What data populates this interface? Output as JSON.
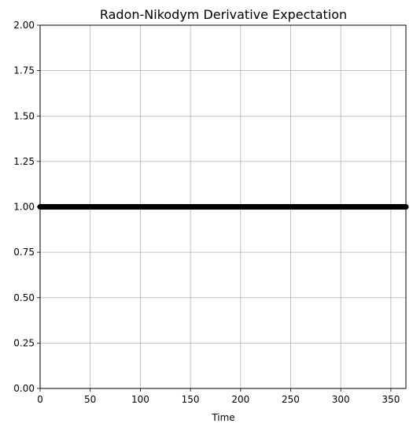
{
  "chart_data": {
    "type": "line",
    "title": "Radon-Nikodym Derivative Expectation",
    "xlabel": "Time",
    "ylabel": "",
    "xlim": [
      0,
      365
    ],
    "ylim": [
      0,
      2
    ],
    "xticks": [
      0,
      50,
      100,
      150,
      200,
      250,
      300,
      350
    ],
    "yticks": [
      0.0,
      0.25,
      0.5,
      0.75,
      1.0,
      1.25,
      1.5,
      1.75,
      2.0
    ],
    "ytick_labels": [
      "0.00",
      "0.25",
      "0.50",
      "0.75",
      "1.00",
      "1.25",
      "1.50",
      "1.75",
      "2.00"
    ],
    "grid": true,
    "series": [
      {
        "color": "#000000",
        "marker": "circle",
        "x_start": 0,
        "x_end": 365,
        "x_step": 1,
        "y_constant": 1.0
      }
    ]
  }
}
